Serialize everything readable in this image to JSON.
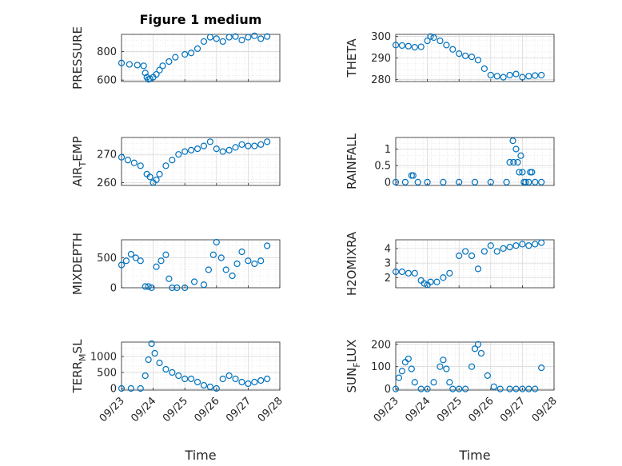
{
  "figure": {
    "title": "Figure 1 medium",
    "marker_color": "#0072BD",
    "x_label": "Time",
    "x_tick_labels": [
      "09/23",
      "09/24",
      "09/25",
      "09/26",
      "09/27",
      "09/28"
    ]
  },
  "chart_data": [
    {
      "type": "scatter",
      "ylabel": "PRESSURE",
      "y_ticks": [
        600,
        800
      ],
      "ylim": [
        590,
        920
      ],
      "xlim": [
        0,
        5
      ],
      "grid": true,
      "x": [
        0,
        0.25,
        0.5,
        0.7,
        0.75,
        0.8,
        0.85,
        0.9,
        1,
        1.1,
        1.2,
        1.3,
        1.5,
        1.7,
        2,
        2.2,
        2.4,
        2.6,
        2.8,
        3,
        3.2,
        3.4,
        3.6,
        3.8,
        4,
        4.2,
        4.4,
        4.6
      ],
      "y": [
        720,
        710,
        705,
        700,
        650,
        620,
        605,
        610,
        620,
        640,
        670,
        700,
        730,
        760,
        780,
        790,
        820,
        870,
        900,
        890,
        870,
        900,
        905,
        880,
        900,
        910,
        890,
        905
      ]
    },
    {
      "type": "scatter",
      "ylabel": "THETA",
      "y_ticks": [
        280,
        290,
        300
      ],
      "ylim": [
        279,
        301
      ],
      "xlim": [
        0,
        5
      ],
      "grid": true,
      "x": [
        0,
        0.2,
        0.4,
        0.6,
        0.8,
        1,
        1.1,
        1.2,
        1.4,
        1.6,
        1.8,
        2,
        2.2,
        2.4,
        2.6,
        2.8,
        3,
        3.2,
        3.4,
        3.6,
        3.8,
        4,
        4.2,
        4.4,
        4.6
      ],
      "y": [
        296,
        295.8,
        295.5,
        295,
        295.2,
        298,
        300,
        299.5,
        298,
        296,
        294,
        292,
        291,
        290.5,
        289,
        285,
        282,
        281.5,
        281,
        282,
        282.5,
        281,
        281.5,
        281.8,
        282
      ]
    },
    {
      "type": "scatter",
      "ylabel": "AIR_TEMP",
      "y_ticks": [
        260,
        270
      ],
      "ylim": [
        259,
        276
      ],
      "xlim": [
        0,
        5
      ],
      "grid": true,
      "x": [
        0,
        0.2,
        0.4,
        0.6,
        0.8,
        0.9,
        1,
        1.1,
        1.2,
        1.4,
        1.6,
        1.8,
        2,
        2.2,
        2.4,
        2.6,
        2.8,
        3,
        3.2,
        3.4,
        3.6,
        3.8,
        4,
        4.2,
        4.4,
        4.6
      ],
      "y": [
        269,
        268,
        267,
        266,
        263,
        262,
        260,
        261,
        263,
        266,
        268,
        270,
        271,
        271.5,
        272,
        273,
        274.5,
        272,
        271,
        271.5,
        272.5,
        273.5,
        273,
        273,
        273.5,
        274.5
      ]
    },
    {
      "type": "scatter",
      "ylabel": "RAINFALL",
      "y_ticks": [
        0,
        0.5,
        1
      ],
      "ylim": [
        -0.1,
        1.35
      ],
      "xlim": [
        0,
        5
      ],
      "grid": true,
      "x": [
        0,
        0.3,
        0.5,
        0.55,
        0.7,
        1,
        1.5,
        2,
        2.5,
        3,
        3.5,
        3.6,
        3.7,
        3.72,
        3.8,
        3.85,
        3.9,
        3.95,
        4,
        4.05,
        4.1,
        4.2,
        4.25,
        4.3,
        4.4,
        4.6
      ],
      "y": [
        0,
        0,
        0.2,
        0.2,
        0,
        0,
        0,
        0,
        0,
        0,
        0,
        0.6,
        1.25,
        0.6,
        1.0,
        0.6,
        0.3,
        0.8,
        0.3,
        0,
        0,
        0,
        0.3,
        0.3,
        0,
        0
      ]
    },
    {
      "type": "scatter",
      "ylabel": "MIXDEPTH",
      "y_ticks": [
        0,
        500
      ],
      "ylim": [
        0,
        800
      ],
      "xlim": [
        0,
        5
      ],
      "grid": true,
      "x": [
        0,
        0.15,
        0.3,
        0.45,
        0.6,
        0.75,
        0.85,
        0.95,
        1.1,
        1.25,
        1.4,
        1.5,
        1.6,
        1.75,
        2,
        2.3,
        2.6,
        2.75,
        2.9,
        3,
        3.15,
        3.3,
        3.5,
        3.65,
        3.8,
        4,
        4.2,
        4.4,
        4.6
      ],
      "y": [
        380,
        450,
        560,
        500,
        450,
        20,
        20,
        0,
        350,
        450,
        550,
        150,
        0,
        0,
        0,
        100,
        50,
        300,
        550,
        760,
        500,
        300,
        200,
        400,
        600,
        450,
        400,
        450,
        700
      ]
    },
    {
      "type": "scatter",
      "ylabel": "H2OMIXRA",
      "y_ticks": [
        2,
        3,
        4
      ],
      "ylim": [
        1.3,
        4.6
      ],
      "xlim": [
        0,
        5
      ],
      "grid": true,
      "x": [
        0,
        0.2,
        0.4,
        0.6,
        0.8,
        0.9,
        1,
        1.1,
        1.3,
        1.5,
        1.7,
        2,
        2.2,
        2.4,
        2.6,
        2.8,
        3,
        3.2,
        3.4,
        3.6,
        3.8,
        4,
        4.2,
        4.4,
        4.6
      ],
      "y": [
        2.4,
        2.4,
        2.3,
        2.3,
        1.8,
        1.6,
        1.5,
        1.7,
        1.7,
        2,
        2.3,
        3.5,
        3.8,
        3.5,
        2.6,
        3.8,
        4.2,
        3.8,
        4,
        4.1,
        4.2,
        4.3,
        4.2,
        4.3,
        4.4
      ]
    },
    {
      "type": "scatter",
      "ylabel": "TERR_MSL",
      "y_ticks": [
        0,
        500,
        1000
      ],
      "ylim": [
        -50,
        1450
      ],
      "xlim": [
        0,
        5
      ],
      "grid": true,
      "x": [
        0,
        0.3,
        0.6,
        0.75,
        0.85,
        0.95,
        1.05,
        1.2,
        1.4,
        1.6,
        1.8,
        2,
        2.2,
        2.4,
        2.6,
        2.8,
        3,
        3.2,
        3.4,
        3.6,
        3.8,
        4,
        4.2,
        4.4,
        4.6
      ],
      "y": [
        0,
        0,
        0,
        400,
        900,
        1400,
        1100,
        800,
        600,
        500,
        400,
        300,
        300,
        200,
        100,
        50,
        0,
        300,
        400,
        300,
        200,
        150,
        200,
        250,
        300
      ]
    },
    {
      "type": "scatter",
      "ylabel": "SUN_FLUX",
      "y_ticks": [
        0,
        100,
        200
      ],
      "ylim": [
        -5,
        210
      ],
      "xlim": [
        0,
        5
      ],
      "grid": true,
      "x": [
        0,
        0.1,
        0.2,
        0.3,
        0.4,
        0.5,
        0.6,
        0.8,
        1,
        1.2,
        1.4,
        1.5,
        1.6,
        1.7,
        1.8,
        2,
        2.2,
        2.4,
        2.5,
        2.6,
        2.7,
        2.9,
        3.1,
        3.3,
        3.6,
        3.8,
        4,
        4.2,
        4.4,
        4.6
      ],
      "y": [
        0,
        50,
        80,
        120,
        135,
        90,
        30,
        0,
        0,
        30,
        100,
        130,
        90,
        30,
        0,
        0,
        0,
        100,
        180,
        200,
        160,
        60,
        10,
        0,
        0,
        0,
        0,
        0,
        0,
        95
      ]
    }
  ]
}
